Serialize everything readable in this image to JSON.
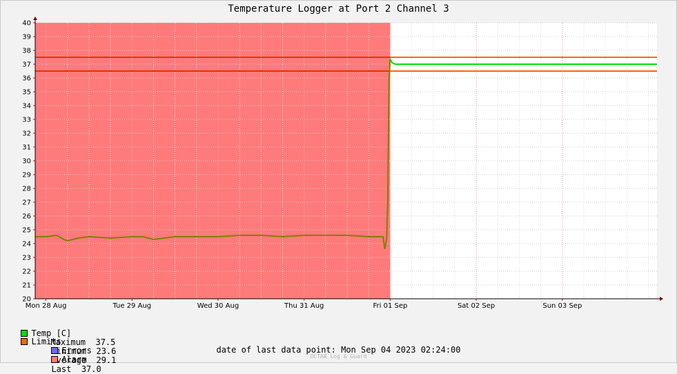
{
  "chart_data": {
    "type": "line",
    "title": "Temperature Logger at Port 2 Channel 3",
    "xlabel": "",
    "ylabel": "",
    "ylim": [
      20,
      40
    ],
    "yticks": [
      20,
      21,
      22,
      23,
      24,
      25,
      26,
      27,
      28,
      29,
      30,
      31,
      32,
      33,
      34,
      35,
      36,
      37,
      38,
      39,
      40
    ],
    "xlim": [
      "2023-08-27 21:00",
      "2023-09-04 02:24"
    ],
    "xticks": [
      {
        "label": "Mon 28 Aug",
        "at": "2023-08-28 00:00"
      },
      {
        "label": "Tue 29 Aug",
        "at": "2023-08-29 00:00"
      },
      {
        "label": "Wed 30 Aug",
        "at": "2023-08-30 00:00"
      },
      {
        "label": "Thu 31 Aug",
        "at": "2023-08-31 00:00"
      },
      {
        "label": "Fri 01 Sep",
        "at": "2023-09-01 00:00"
      },
      {
        "label": "Sat 02 Sep",
        "at": "2023-09-02 00:00"
      },
      {
        "label": "Sun 03 Sep",
        "at": "2023-09-03 00:00"
      }
    ],
    "limits": [
      37.5,
      36.5
    ],
    "alarm_period": [
      "2023-08-27 21:00",
      "2023-09-01 00:00"
    ],
    "series": [
      {
        "name": "Temp [C]",
        "x": [
          "2023-08-27 21:00",
          "2023-08-28 00:00",
          "2023-08-28 03:00",
          "2023-08-28 05:00",
          "2023-08-28 06:00",
          "2023-08-28 09:00",
          "2023-08-28 12:00",
          "2023-08-28 18:00",
          "2023-08-29 00:00",
          "2023-08-29 03:00",
          "2023-08-29 06:00",
          "2023-08-29 12:00",
          "2023-08-29 18:00",
          "2023-08-30 00:00",
          "2023-08-30 06:00",
          "2023-08-30 12:00",
          "2023-08-30 18:00",
          "2023-08-31 00:00",
          "2023-08-31 06:00",
          "2023-08-31 12:00",
          "2023-08-31 18:00",
          "2023-08-31 22:00",
          "2023-08-31 22:30",
          "2023-08-31 23:00",
          "2023-08-31 23:20",
          "2023-08-31 23:40",
          "2023-09-01 00:00",
          "2023-09-01 00:30",
          "2023-09-01 01:30",
          "2023-09-01 06:00",
          "2023-09-01 12:00",
          "2023-09-02 00:00",
          "2023-09-02 12:00",
          "2023-09-03 00:00",
          "2023-09-03 12:00",
          "2023-09-04 00:00",
          "2023-09-04 02:24"
        ],
        "values": [
          24.5,
          24.5,
          24.6,
          24.3,
          24.2,
          24.4,
          24.5,
          24.4,
          24.5,
          24.5,
          24.3,
          24.5,
          24.5,
          24.5,
          24.6,
          24.6,
          24.5,
          24.6,
          24.6,
          24.6,
          24.5,
          24.5,
          23.6,
          24.3,
          27.0,
          35.8,
          37.4,
          37.1,
          37.0,
          37.0,
          37.0,
          37.0,
          37.0,
          37.0,
          37.0,
          37.0,
          37.0
        ]
      }
    ],
    "colors": {
      "temp": "#00e000",
      "temp_in_alarm": "#808000",
      "limits": "#ff6600",
      "limits_in_alarm": "#e63300",
      "alarm": "#ff7a7a",
      "errors": "#6b6bff",
      "grid": "#ff9999"
    }
  },
  "legend": {
    "temp": "Temp [C]",
    "limits": "Limits",
    "errors": "Errors",
    "alarm": "Alarm"
  },
  "stats": {
    "max_label": "Maximum",
    "max_value": "37.5",
    "min_label": "Minimum",
    "min_value": "23.6",
    "avg_label": "Average",
    "avg_value": "29.1",
    "last_label": "Last",
    "last_value": "37.0"
  },
  "footer": {
    "last_point_label": "date of last data point:",
    "last_point_value": "Mon Sep 04 2023 02:24:00",
    "watermark": "OCTAÆ Log & Guard"
  }
}
